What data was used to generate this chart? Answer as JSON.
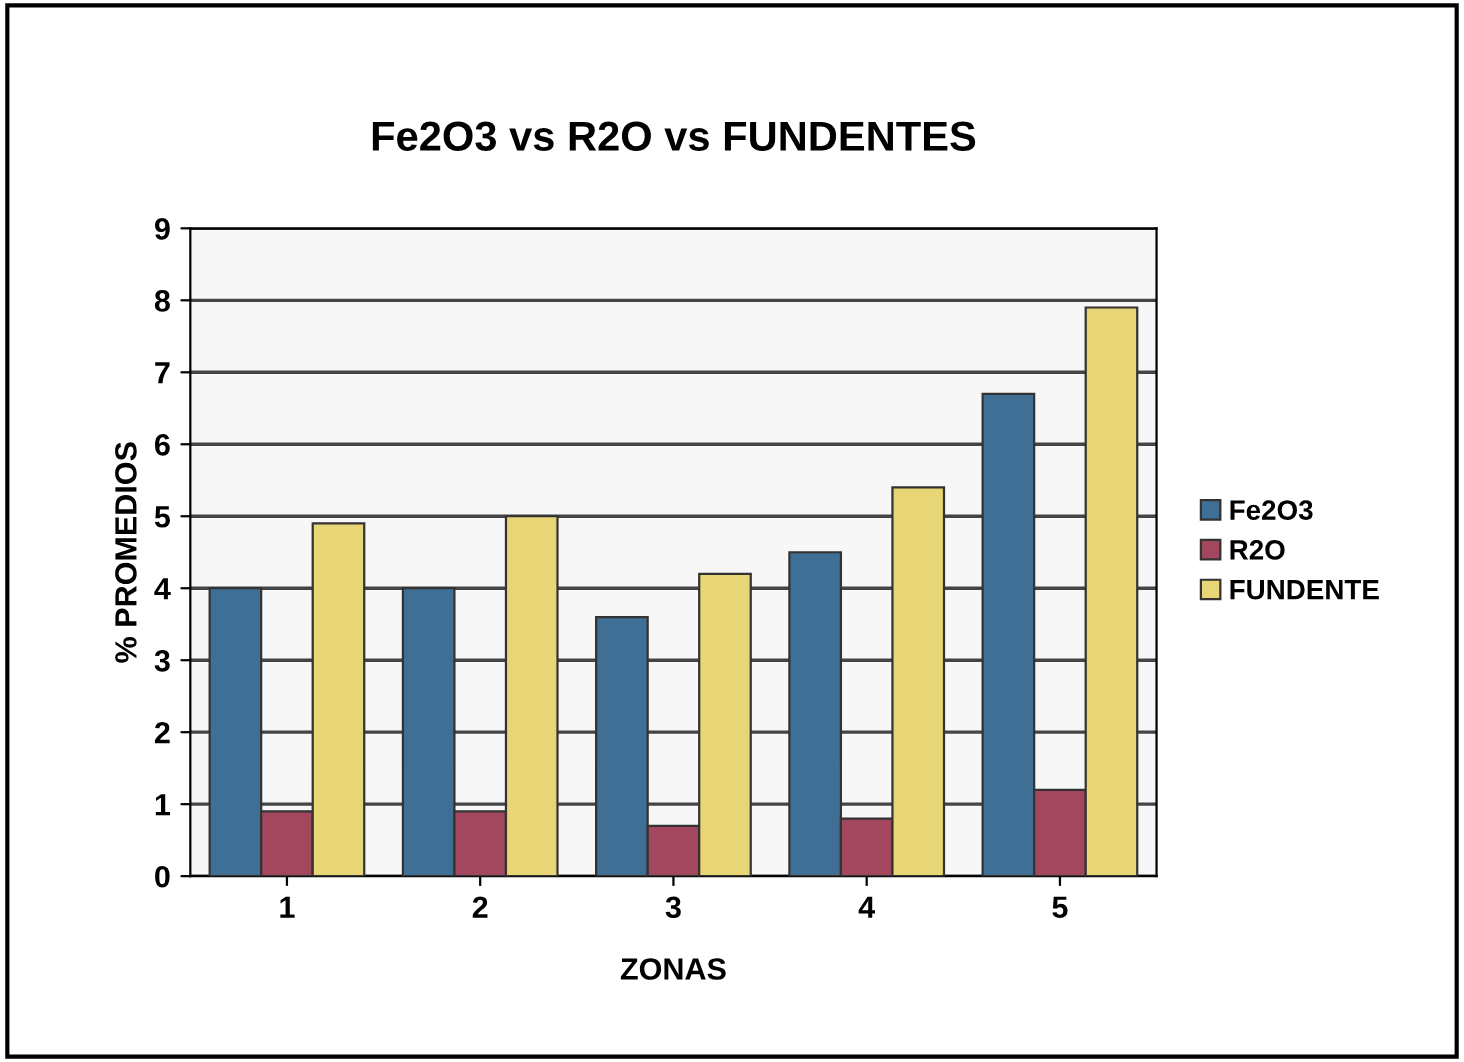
{
  "chart_data": {
    "type": "bar",
    "title": "Fe2O3 vs R2O vs FUNDENTES",
    "xlabel": "ZONAS",
    "ylabel": "% PROMEDIOS",
    "categories": [
      "1",
      "2",
      "3",
      "4",
      "5"
    ],
    "series": [
      {
        "name": "Fe2O3",
        "color": "#3f6f95",
        "values": [
          4.0,
          4.0,
          3.6,
          4.5,
          6.7
        ]
      },
      {
        "name": "R2O",
        "color": "#a3475f",
        "values": [
          0.9,
          0.9,
          0.7,
          0.8,
          1.2
        ]
      },
      {
        "name": "FUNDENTE",
        "color": "#e8d575",
        "values": [
          4.9,
          5.0,
          4.2,
          5.4,
          7.9
        ]
      }
    ],
    "ylim": [
      0,
      9
    ],
    "yticks": [
      0,
      1,
      2,
      3,
      4,
      5,
      6,
      7,
      8,
      9
    ],
    "grid": "y",
    "legend": "right"
  }
}
